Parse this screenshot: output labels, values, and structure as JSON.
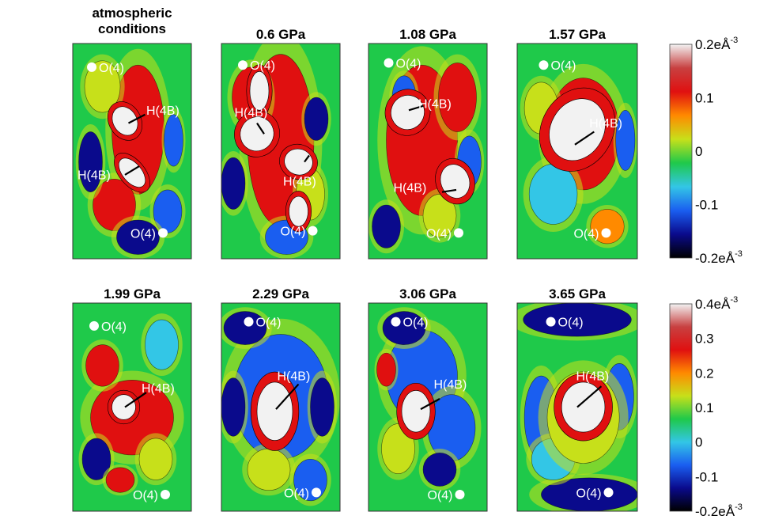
{
  "panels": [
    {
      "title_lines": [
        "atmospheric",
        "conditions"
      ],
      "o_top": "O(4)",
      "h_a": "H(4B)",
      "h_b": "H(4B)",
      "o_bottom": "O(4)"
    },
    {
      "title_lines": [
        "0.6 GPa"
      ],
      "o_top": "O(4)",
      "h_a": "H(4B)",
      "h_b": "H(4B)",
      "o_bottom": "O(4)"
    },
    {
      "title_lines": [
        "1.08 GPa"
      ],
      "o_top": "O(4)",
      "h_a": "H(4B)",
      "h_b": "H(4B)",
      "o_bottom": "O(4)"
    },
    {
      "title_lines": [
        "1.57 GPa"
      ],
      "o_top": "O(4)",
      "h_a": "H(4B)",
      "o_bottom": "O(4)"
    },
    {
      "title_lines": [
        "1.99 GPa"
      ],
      "o_top": "O(4)",
      "h_a": "H(4B)",
      "o_bottom": "O(4)"
    },
    {
      "title_lines": [
        "2.29 GPa"
      ],
      "o_top": "O(4)",
      "h_a": "H(4B)",
      "o_bottom": "O(4)"
    },
    {
      "title_lines": [
        "3.06 GPa"
      ],
      "o_top": "O(4)",
      "h_a": "H(4B)",
      "o_bottom": "O(4)"
    },
    {
      "title_lines": [
        "3.65 GPa"
      ],
      "o_top": "O(4)",
      "h_a": "H(4B)",
      "o_bottom": "O(4)"
    }
  ],
  "colorbars": [
    {
      "ticks": [
        "0.2",
        "0.1",
        "0",
        "-0.1",
        "-0.2"
      ],
      "tick_values": [
        0.2,
        0.1,
        0,
        -0.1,
        -0.2
      ],
      "unit_base": "eÅ",
      "unit_exp": "-3",
      "top_unit": true,
      "bottom_unit": true
    },
    {
      "ticks": [
        "0.4",
        "0.3",
        "0.2",
        "0.1",
        "0",
        "-0.1",
        "-0.2"
      ],
      "tick_values": [
        0.4,
        0.3,
        0.2,
        0.1,
        0,
        -0.1,
        -0.2
      ],
      "unit_base": "eÅ",
      "unit_exp": "-3",
      "top_unit": true,
      "bottom_unit": true
    }
  ],
  "colormap": {
    "stops": [
      "#000000",
      "#0a0a8c",
      "#1a5ef0",
      "#33c6e6",
      "#1fc94a",
      "#c7e01a",
      "#ff8a00",
      "#e01010",
      "#c84040",
      "#f2f2f2"
    ]
  },
  "colors": {
    "marker": "#ffffff",
    "bond": "#000000",
    "label": "#ffffff",
    "frame": "#333333"
  }
}
